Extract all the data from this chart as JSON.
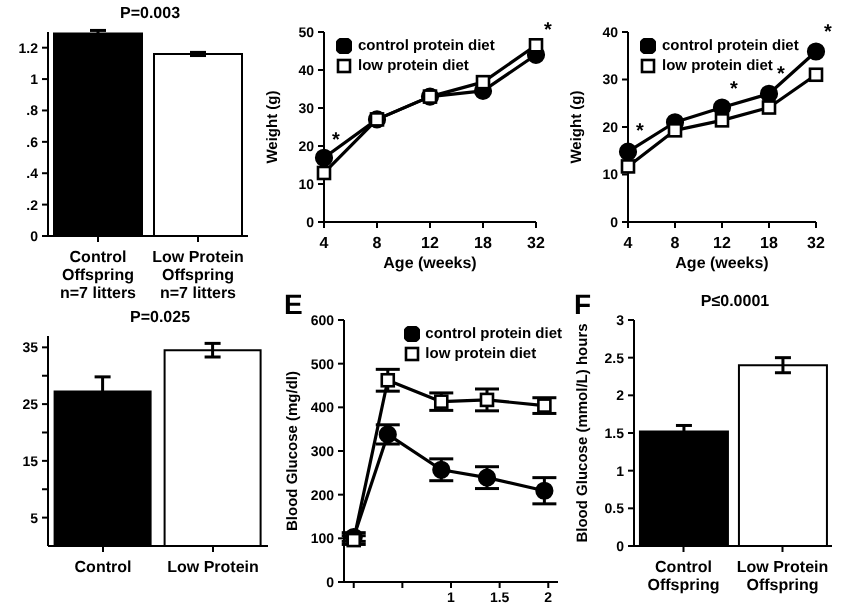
{
  "chart_data": [
    {
      "type": "bar",
      "categories": [
        "Control Offspring n=7 litters",
        "Low Protein Offspring n=7 litters"
      ],
      "colors": [
        "#000000",
        "#ffffff"
      ],
      "values": [
        1.29,
        1.16
      ],
      "errors": [
        0.02,
        0.01
      ],
      "ylim": [
        0,
        1.3
      ],
      "yticks": [
        0,
        {
          "value": 0.2,
          "label": ".2"
        },
        {
          "value": 0.4,
          "label": ".4"
        },
        {
          "value": 0.6,
          "label": ".6"
        },
        {
          "value": 0.8,
          "label": ".8"
        },
        1,
        1.2
      ],
      "annotations": [
        "P=0.003"
      ]
    },
    {
      "type": "line",
      "categories": [
        "4",
        "8",
        "12",
        "18",
        "32"
      ],
      "series": [
        {
          "name": "control protein diet",
          "color": "#000000",
          "marker": "circle",
          "values": [
            16.9,
            27,
            33,
            34.5,
            44
          ]
        },
        {
          "name": "low protein diet",
          "color": "#000000",
          "marker": "square",
          "values": [
            12.9,
            27,
            33,
            36.8,
            46.5
          ]
        }
      ],
      "ylim": [
        0,
        50
      ],
      "yticks": [
        0,
        10,
        20,
        30,
        40,
        50
      ],
      "xlabel": "Age (weeks)",
      "ylabel": "Weight (g)",
      "legend": "top left",
      "annotations": [
        {
          "text": "*",
          "x": "4",
          "y": 19
        },
        {
          "text": "*",
          "x": "32",
          "y": 48
        }
      ]
    },
    {
      "type": "line",
      "categories": [
        "4",
        "8",
        "12",
        "18",
        "32"
      ],
      "series": [
        {
          "name": "control protein diet",
          "color": "#000000",
          "marker": "circle",
          "values": [
            14.8,
            21,
            24.1,
            27,
            35.9
          ]
        },
        {
          "name": "low protein diet",
          "color": "#000000",
          "marker": "square",
          "values": [
            11.7,
            19.3,
            21.4,
            24.1,
            31
          ]
        }
      ],
      "ylim": [
        0,
        40
      ],
      "yticks": [
        0,
        10,
        20,
        30,
        40
      ],
      "xlabel": "Age (weeks)",
      "ylabel": "Weight (g)",
      "legend": "top left",
      "annotations": [
        {
          "text": "*",
          "x": "4",
          "y": 17
        },
        {
          "text": "*",
          "x": "12",
          "y": 26
        },
        {
          "text": "*",
          "x": "18",
          "y": 29
        },
        {
          "text": "*",
          "x": "32",
          "y": 38
        }
      ]
    },
    {
      "type": "bar",
      "categories": [
        "Control",
        "Low Protein"
      ],
      "colors": [
        "#000000",
        "#ffffff"
      ],
      "values": [
        27.2,
        34.5
      ],
      "errors": [
        2.6,
        1.2
      ],
      "ylim": [
        0,
        37
      ],
      "yticks": [
        5,
        {
          "value": 10,
          "label": null
        },
        15,
        {
          "value": 20,
          "label": null
        },
        25,
        {
          "value": 30,
          "label": null
        },
        35
      ],
      "annotations": [
        "P=0.025"
      ]
    },
    {
      "type": "line",
      "title": "E",
      "x": [
        0,
        0.35,
        0.9,
        1.37,
        1.96
      ],
      "series": [
        {
          "name": "control protein diet",
          "color": "#000000",
          "marker": "circle",
          "values": [
            103,
            338,
            257,
            239,
            209
          ],
          "errors": [
            10,
            22,
            25,
            25,
            30
          ]
        },
        {
          "name": "low protein diet",
          "color": "#000000",
          "marker": "square",
          "values": [
            96,
            462,
            413,
            417,
            404
          ],
          "errors": [
            10,
            25,
            20,
            25,
            18
          ]
        }
      ],
      "xlim": [
        -0.1,
        2.1
      ],
      "xticks": [
        {
          "value": 0,
          "label": null
        },
        {
          "value": 0.5,
          "label": null
        },
        1,
        1.5,
        2
      ],
      "ylim": [
        0,
        600
      ],
      "yticks": [
        0,
        100,
        200,
        300,
        400,
        500,
        600
      ],
      "ylabel": "Blood Glucose (mg/dl)",
      "legend": "top right"
    },
    {
      "type": "bar",
      "title": "F",
      "categories": [
        "Control Offspring",
        "Low Protein Offspring"
      ],
      "colors": [
        "#000000",
        "#ffffff"
      ],
      "values": [
        1.52,
        2.4
      ],
      "errors": [
        0.08,
        0.1
      ],
      "ylim": [
        0,
        3
      ],
      "yticks": [
        0,
        0.5,
        1,
        1.5,
        2,
        2.5,
        3
      ],
      "ylabel": "Blood Glucose (mmol/L) hours",
      "annotations": [
        "P≤0.0001"
      ]
    }
  ]
}
